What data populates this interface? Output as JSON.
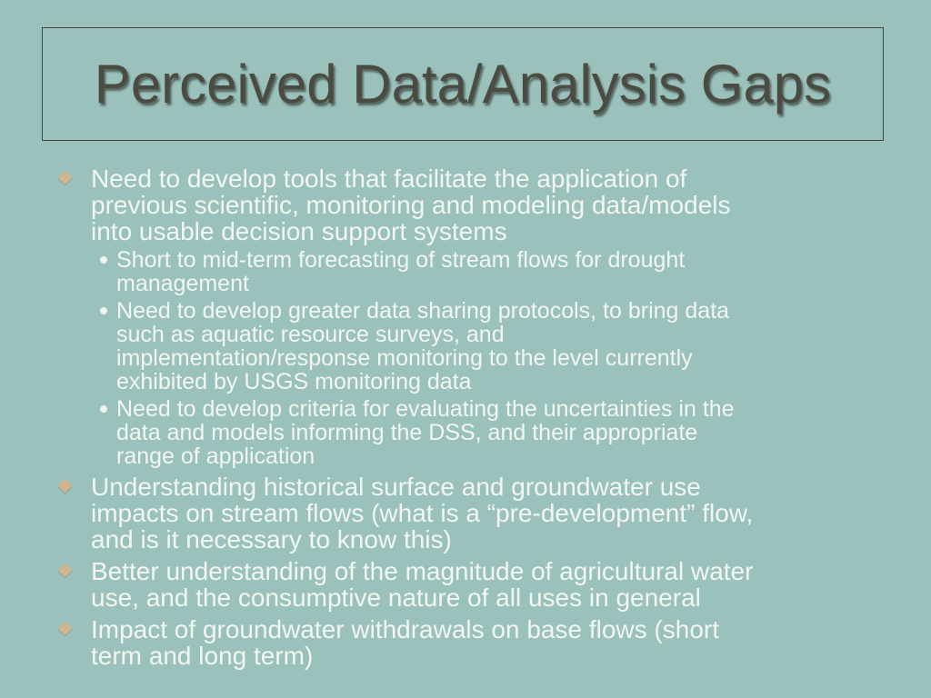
{
  "slide": {
    "background_color": "#9bc1bd",
    "title_text_color": "#4a4c41",
    "title_border_color": "#3f4a45",
    "body_text_color": "#f2f6f1",
    "diamond_bullet_color": "#d2b58e",
    "circle_bullet_color": "#eef3ee",
    "title": "Perceived Data/Analysis Gaps"
  },
  "content": {
    "items": [
      {
        "level": 1,
        "text": "Need to develop tools that facilitate the application of previous scientific, monitoring and modeling data/models into usable decision support systems",
        "lines": [
          "Need to develop tools that facilitate the application of",
          "previous scientific, monitoring and modeling data/models",
          "into usable decision support systems"
        ]
      },
      {
        "level": 2,
        "text": "Short to mid-term forecasting of stream flows for drought management",
        "lines": [
          "Short to mid-term forecasting of stream flows for drought",
          "management"
        ]
      },
      {
        "level": 2,
        "text": "Need to develop greater data sharing protocols, to bring data such as aquatic resource surveys, and implementation/response monitoring to the level currently exhibited by USGS monitoring data",
        "lines": [
          "Need to develop greater data sharing protocols, to bring data",
          "such as aquatic resource surveys, and",
          "implementation/response monitoring to the level currently",
          "exhibited by USGS monitoring data"
        ]
      },
      {
        "level": 2,
        "text": "Need to develop criteria for evaluating the uncertainties in the data and models informing the DSS, and their appropriate range of application",
        "lines": [
          "Need to develop criteria for evaluating the uncertainties in the",
          "data and models informing the DSS, and their appropriate",
          "range of application"
        ]
      },
      {
        "level": 1,
        "text": "Understanding historical surface and groundwater use impacts on stream flows (what is a “pre-development” flow, and is it necessary to know this)",
        "lines": [
          "Understanding historical surface and groundwater use",
          "impacts on stream flows (what is a “pre-development” flow,",
          "and is it necessary to know this)"
        ]
      },
      {
        "level": 1,
        "text": "Better understanding of the magnitude of agricultural water use, and the consumptive nature of all uses in general",
        "lines": [
          "Better understanding of the magnitude of agricultural water",
          "use, and the consumptive nature of all uses in general"
        ]
      },
      {
        "level": 1,
        "text": "Impact of groundwater withdrawals on base flows (short term and long term)",
        "lines": [
          "Impact of groundwater withdrawals on base flows (short",
          "term and long term)"
        ]
      }
    ]
  }
}
